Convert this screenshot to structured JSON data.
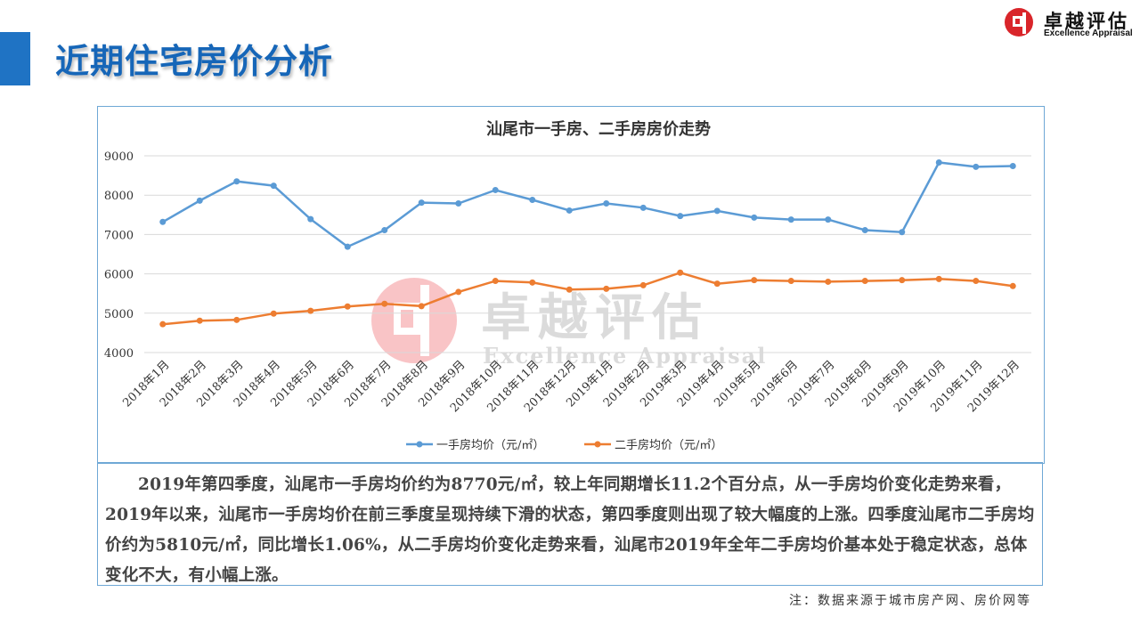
{
  "header": {
    "title": "近期住宅房价分析"
  },
  "logo": {
    "name": "卓越评估",
    "subtitle": "Excellence Appraisal"
  },
  "watermark": {
    "name": "卓越评估",
    "subtitle": "Excellence Appraisal"
  },
  "colors": {
    "accent": "#1f73c4",
    "title_text": "#1666b8",
    "series_new": "#5b9bd5",
    "series_resale": "#ed7d31",
    "logo_red": "#d9252a"
  },
  "chart_data": {
    "type": "line",
    "title": "汕尾市一手房、二手房房价走势",
    "xlabel": "",
    "ylabel": "",
    "ylim": [
      4000,
      9000
    ],
    "yticks": [
      4000,
      5000,
      6000,
      7000,
      8000,
      9000
    ],
    "grid": true,
    "legend_position": "bottom",
    "categories": [
      "2018年1月",
      "2018年2月",
      "2018年3月",
      "2018年4月",
      "2018年5月",
      "2018年6月",
      "2018年7月",
      "2018年8月",
      "2018年9月",
      "2018年10月",
      "2018年11月",
      "2018年12月",
      "2019年1月",
      "2019年2月",
      "2019年3月",
      "2019年4月",
      "2019年5月",
      "2019年6月",
      "2019年7月",
      "2019年8月",
      "2019年9月",
      "2019年10月",
      "2019年11月",
      "2019年12月"
    ],
    "series": [
      {
        "name": "一手房均价（元/㎡）",
        "color": "#5b9bd5",
        "values": [
          7320,
          7860,
          8350,
          8240,
          7390,
          6690,
          7110,
          7810,
          7790,
          8130,
          7880,
          7610,
          7790,
          7680,
          7470,
          7600,
          7430,
          7380,
          7380,
          7110,
          7060,
          8830,
          8720,
          8740
        ]
      },
      {
        "name": "二手房均价（元/㎡）",
        "color": "#ed7d31",
        "values": [
          4720,
          4810,
          4830,
          4990,
          5060,
          5170,
          5240,
          5180,
          5540,
          5820,
          5780,
          5600,
          5620,
          5710,
          6030,
          5750,
          5840,
          5820,
          5800,
          5820,
          5840,
          5870,
          5820,
          5690
        ]
      }
    ]
  },
  "analysis": {
    "text": "2019年第四季度，汕尾市一手房均价约为8770元/㎡，较上年同期增长11.2个百分点，从一手房均价变化走势来看，2019年以来，汕尾市一手房均价在前三季度呈现持续下滑的状态，第四季度则出现了较大幅度的上涨。四季度汕尾市二手房均价约为5810元/㎡，同比增长1.06%，从二手房均价变化走势来看，汕尾市2019年全年二手房均价基本处于稳定状态，总体变化不大，有小幅上涨。"
  },
  "footer": {
    "note": "注：数据来源于城市房产网、房价网等"
  }
}
